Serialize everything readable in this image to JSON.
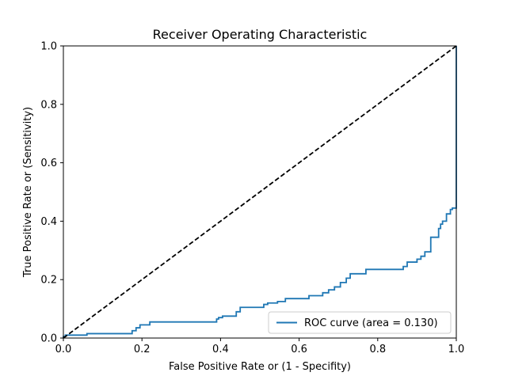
{
  "chart_data": {
    "type": "line",
    "title": "Receiver Operating Characteristic",
    "xlabel": "False Positive Rate or (1 - Specifity)",
    "ylabel": "True Positive Rate or (Sensitivity)",
    "xlim": [
      0,
      1
    ],
    "ylim": [
      0,
      1
    ],
    "xticks": [
      "0.0",
      "0.2",
      "0.4",
      "0.6",
      "0.8",
      "1.0"
    ],
    "yticks": [
      "0.0",
      "0.2",
      "0.4",
      "0.6",
      "0.8",
      "1.0"
    ],
    "grid": false,
    "legend": {
      "placement": "lower right",
      "entries": [
        "ROC curve (area = 0.130)"
      ]
    },
    "series": [
      {
        "name": "ROC curve (area = 0.130)",
        "color": "#1f77b4",
        "style": "step",
        "x": [
          0.0,
          0.0,
          0.005,
          0.005,
          0.06,
          0.06,
          0.175,
          0.175,
          0.185,
          0.185,
          0.195,
          0.195,
          0.22,
          0.22,
          0.39,
          0.39,
          0.395,
          0.395,
          0.405,
          0.405,
          0.44,
          0.44,
          0.45,
          0.45,
          0.51,
          0.51,
          0.52,
          0.52,
          0.545,
          0.545,
          0.565,
          0.565,
          0.625,
          0.625,
          0.66,
          0.66,
          0.675,
          0.675,
          0.69,
          0.69,
          0.705,
          0.705,
          0.72,
          0.72,
          0.73,
          0.73,
          0.77,
          0.77,
          0.865,
          0.865,
          0.875,
          0.875,
          0.9,
          0.9,
          0.91,
          0.91,
          0.92,
          0.92,
          0.935,
          0.935,
          0.955,
          0.955,
          0.96,
          0.96,
          0.965,
          0.965,
          0.975,
          0.975,
          0.985,
          0.985,
          0.99,
          0.99,
          1.0,
          1.0
        ],
        "y": [
          0.0,
          0.005,
          0.005,
          0.01,
          0.01,
          0.015,
          0.015,
          0.025,
          0.025,
          0.035,
          0.035,
          0.045,
          0.045,
          0.055,
          0.055,
          0.065,
          0.065,
          0.07,
          0.07,
          0.075,
          0.075,
          0.09,
          0.09,
          0.105,
          0.105,
          0.115,
          0.115,
          0.12,
          0.12,
          0.125,
          0.125,
          0.135,
          0.135,
          0.145,
          0.145,
          0.155,
          0.155,
          0.165,
          0.165,
          0.175,
          0.175,
          0.19,
          0.19,
          0.205,
          0.205,
          0.22,
          0.22,
          0.235,
          0.235,
          0.245,
          0.245,
          0.26,
          0.26,
          0.27,
          0.27,
          0.28,
          0.28,
          0.295,
          0.295,
          0.345,
          0.345,
          0.375,
          0.375,
          0.39,
          0.39,
          0.4,
          0.4,
          0.425,
          0.425,
          0.44,
          0.44,
          0.445,
          0.445,
          1.0
        ]
      },
      {
        "name": "",
        "color": "#000000",
        "style": "dashed",
        "x": [
          0,
          1
        ],
        "y": [
          0,
          1
        ]
      }
    ]
  }
}
